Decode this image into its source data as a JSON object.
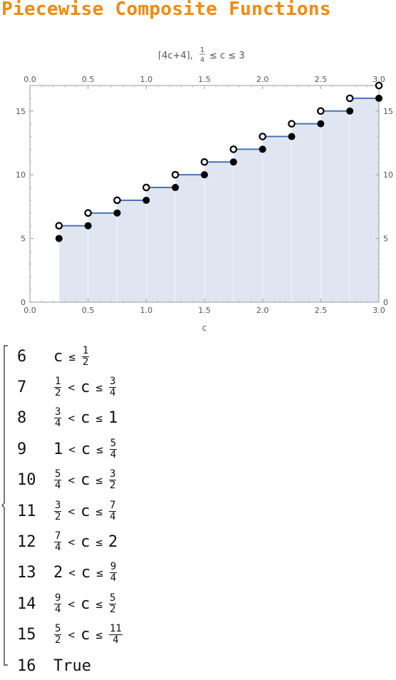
{
  "page": {
    "title": "Piecewise Composite Functions"
  },
  "chart_data": {
    "type": "step",
    "title_main": "⌈4c+4⌉,",
    "title_frac": {
      "num": "1",
      "den": "4"
    },
    "title_tail": "≤ c ≤ 3",
    "xlabel": "c",
    "xlim": [
      0,
      3
    ],
    "ylim": [
      0,
      17
    ],
    "x_ticks": [
      "0.0",
      "0.5",
      "1.0",
      "1.5",
      "2.0",
      "2.5",
      "3.0"
    ],
    "y_ticks": [
      "0",
      "5",
      "10",
      "15"
    ],
    "colors": {
      "line": "#4a72b8",
      "fill": "#dfe6f2",
      "point": "#000000"
    },
    "steps": [
      {
        "x0": 0.25,
        "x1": 0.5,
        "y": 6
      },
      {
        "x0": 0.5,
        "x1": 0.75,
        "y": 7
      },
      {
        "x0": 0.75,
        "x1": 1.0,
        "y": 8
      },
      {
        "x0": 1.0,
        "x1": 1.25,
        "y": 9
      },
      {
        "x0": 1.25,
        "x1": 1.5,
        "y": 10
      },
      {
        "x0": 1.5,
        "x1": 1.75,
        "y": 11
      },
      {
        "x0": 1.75,
        "x1": 2.0,
        "y": 12
      },
      {
        "x0": 2.0,
        "x1": 2.25,
        "y": 13
      },
      {
        "x0": 2.25,
        "x1": 2.5,
        "y": 14
      },
      {
        "x0": 2.5,
        "x1": 2.75,
        "y": 15
      },
      {
        "x0": 2.75,
        "x1": 3.0,
        "y": 16
      }
    ],
    "open_points": [
      {
        "x": 0.25,
        "y": 6
      },
      {
        "x": 0.5,
        "y": 7
      },
      {
        "x": 0.75,
        "y": 8
      },
      {
        "x": 1.0,
        "y": 9
      },
      {
        "x": 1.25,
        "y": 10
      },
      {
        "x": 1.5,
        "y": 11
      },
      {
        "x": 1.75,
        "y": 12
      },
      {
        "x": 2.0,
        "y": 13
      },
      {
        "x": 2.25,
        "y": 14
      },
      {
        "x": 2.5,
        "y": 15
      },
      {
        "x": 2.75,
        "y": 16
      },
      {
        "x": 3.0,
        "y": 17
      }
    ],
    "closed_points": [
      {
        "x": 0.25,
        "y": 5
      },
      {
        "x": 0.5,
        "y": 6
      },
      {
        "x": 0.75,
        "y": 7
      },
      {
        "x": 1.0,
        "y": 8
      },
      {
        "x": 1.25,
        "y": 9
      },
      {
        "x": 1.5,
        "y": 10
      },
      {
        "x": 1.75,
        "y": 11
      },
      {
        "x": 2.0,
        "y": 12
      },
      {
        "x": 2.25,
        "y": 13
      },
      {
        "x": 2.5,
        "y": 14
      },
      {
        "x": 2.75,
        "y": 15
      },
      {
        "x": 3.0,
        "y": 16
      }
    ]
  },
  "piecewise": [
    {
      "value": "6",
      "cond": [
        {
          "frac": [
            "1",
            "2"
          ]
        },
        {
          "op": "≤",
          "pre": "c"
        }
      ]
    },
    {
      "value": "7",
      "cond": [
        {
          "frac": [
            "1",
            "2"
          ]
        },
        {
          "op": "<"
        },
        {
          "tok": "c"
        },
        {
          "op": "≤"
        },
        {
          "frac": [
            "3",
            "4"
          ]
        }
      ]
    },
    {
      "value": "8",
      "cond": [
        {
          "frac": [
            "3",
            "4"
          ]
        },
        {
          "op": "<"
        },
        {
          "tok": "c"
        },
        {
          "op": "≤"
        },
        {
          "tok": "1"
        }
      ]
    },
    {
      "value": "9",
      "cond": [
        {
          "tok": "1"
        },
        {
          "op": "<"
        },
        {
          "tok": "c"
        },
        {
          "op": "≤"
        },
        {
          "frac": [
            "5",
            "4"
          ]
        }
      ]
    },
    {
      "value": "10",
      "cond": [
        {
          "frac": [
            "5",
            "4"
          ]
        },
        {
          "op": "<"
        },
        {
          "tok": "c"
        },
        {
          "op": "≤"
        },
        {
          "frac": [
            "3",
            "2"
          ]
        }
      ]
    },
    {
      "value": "11",
      "cond": [
        {
          "frac": [
            "3",
            "2"
          ]
        },
        {
          "op": "<"
        },
        {
          "tok": "c"
        },
        {
          "op": "≤"
        },
        {
          "frac": [
            "7",
            "4"
          ]
        }
      ]
    },
    {
      "value": "12",
      "cond": [
        {
          "frac": [
            "7",
            "4"
          ]
        },
        {
          "op": "<"
        },
        {
          "tok": "c"
        },
        {
          "op": "≤"
        },
        {
          "tok": "2"
        }
      ]
    },
    {
      "value": "13",
      "cond": [
        {
          "tok": "2"
        },
        {
          "op": "<"
        },
        {
          "tok": "c"
        },
        {
          "op": "≤"
        },
        {
          "frac": [
            "9",
            "4"
          ]
        }
      ]
    },
    {
      "value": "14",
      "cond": [
        {
          "frac": [
            "9",
            "4"
          ]
        },
        {
          "op": "<"
        },
        {
          "tok": "c"
        },
        {
          "op": "≤"
        },
        {
          "frac": [
            "5",
            "2"
          ]
        }
      ]
    },
    {
      "value": "15",
      "cond": [
        {
          "frac": [
            "5",
            "2"
          ]
        },
        {
          "op": "<"
        },
        {
          "tok": "c"
        },
        {
          "op": "≤"
        },
        {
          "frac": [
            "11",
            "4"
          ]
        }
      ]
    },
    {
      "value": "16",
      "cond": [
        {
          "tok": "True"
        }
      ]
    }
  ]
}
